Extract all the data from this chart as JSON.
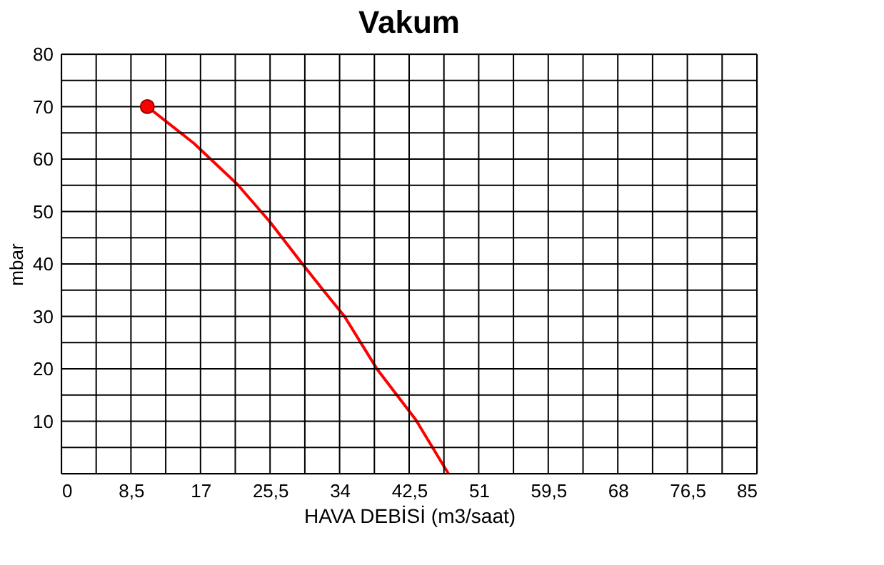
{
  "chart_data": {
    "type": "line",
    "title": "Vakum",
    "xlabel": "HAVA DEBİSİ (m3/saat)",
    "ylabel": "mbar",
    "series": [
      {
        "type": "line",
        "color": "#ff0000",
        "x": [
          10.5,
          16.2,
          21.5,
          25.5,
          29.3,
          32,
          34.6,
          38.6,
          43.3,
          47.3
        ],
        "values": [
          70,
          63,
          55.2,
          48,
          40.3,
          35,
          30,
          19.9,
          10.3,
          0
        ]
      },
      {
        "type": "scatter",
        "color": "#ff0000",
        "x": [
          10.5
        ],
        "values": [
          70
        ]
      }
    ],
    "xlim": [
      0,
      85
    ],
    "ylim": [
      0,
      80
    ],
    "xticks": [
      0,
      {
        "value": 4.25,
        "label": null
      },
      {
        "value": 8.5,
        "label": "8,5"
      },
      {
        "value": 12.75,
        "label": null
      },
      17,
      {
        "value": 21.25,
        "label": null
      },
      {
        "value": 25.5,
        "label": "25,5"
      },
      {
        "value": 29.75,
        "label": null
      },
      34,
      {
        "value": 38.25,
        "label": null
      },
      {
        "value": 42.5,
        "label": "42,5"
      },
      {
        "value": 46.75,
        "label": null
      },
      51,
      {
        "value": 55.25,
        "label": null
      },
      {
        "value": 59.5,
        "label": "59,5"
      },
      {
        "value": 63.75,
        "label": null
      },
      68,
      {
        "value": 72.25,
        "label": null
      },
      {
        "value": 76.5,
        "label": "76,5"
      },
      {
        "value": 80.75,
        "label": null
      },
      85
    ],
    "yticks": [
      {
        "value": 0,
        "label": null
      },
      {
        "value": 5,
        "label": null
      },
      10,
      {
        "value": 15,
        "label": null
      },
      20,
      {
        "value": 25,
        "label": null
      },
      30,
      {
        "value": 35,
        "label": null
      },
      40,
      {
        "value": 45,
        "label": null
      },
      50,
      {
        "value": 55,
        "label": null
      },
      60,
      {
        "value": 65,
        "label": null
      },
      70,
      {
        "value": 75,
        "label": null
      },
      80
    ],
    "grid": true,
    "line_style": "solid"
  }
}
